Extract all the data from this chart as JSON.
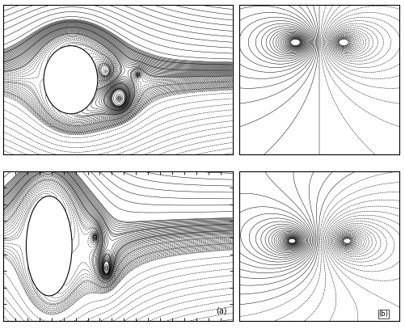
{
  "figure_width": 5.02,
  "figure_height": 4.07,
  "dpi": 100,
  "background_color": "#ffffff",
  "label_a": "(a)",
  "label_b": "(b)",
  "label_fontsize": 7
}
